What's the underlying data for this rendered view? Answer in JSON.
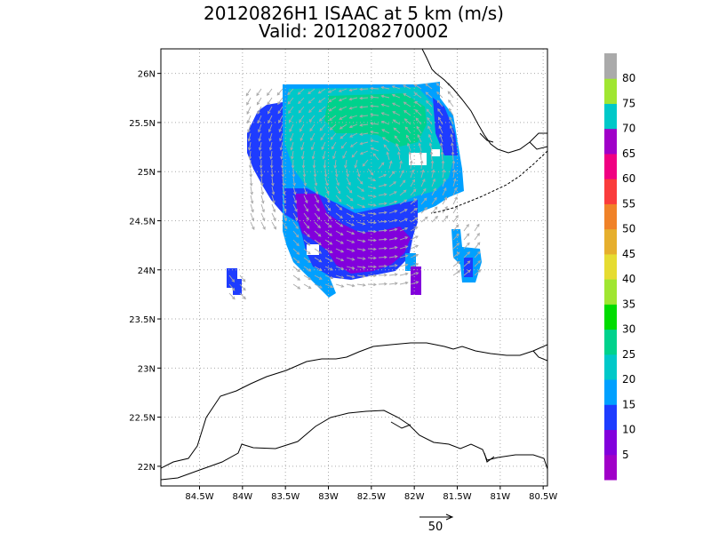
{
  "title": {
    "line1": "20120826H1 ISAAC at 5 km (m/s)",
    "line2": "Valid: 201208270002"
  },
  "map": {
    "lon_range": [
      -84.95,
      -80.45
    ],
    "lat_range": [
      21.8,
      26.25
    ],
    "lon_ticks": [
      {
        "value": -84.5,
        "label": "84.5W"
      },
      {
        "value": -84.0,
        "label": "84W"
      },
      {
        "value": -83.5,
        "label": "83.5W"
      },
      {
        "value": -83.0,
        "label": "83W"
      },
      {
        "value": -82.5,
        "label": "82.5W"
      },
      {
        "value": -82.0,
        "label": "82W"
      },
      {
        "value": -81.5,
        "label": "81.5W"
      },
      {
        "value": -81.0,
        "label": "81W"
      },
      {
        "value": -80.5,
        "label": "80.5W"
      }
    ],
    "lat_ticks": [
      {
        "value": 22.0,
        "label": "22N"
      },
      {
        "value": 22.5,
        "label": "22.5N"
      },
      {
        "value": 23.0,
        "label": "23N"
      },
      {
        "value": 23.5,
        "label": "23.5N"
      },
      {
        "value": 24.0,
        "label": "24N"
      },
      {
        "value": 24.5,
        "label": "24.5N"
      },
      {
        "value": 25.0,
        "label": "25N"
      },
      {
        "value": 25.5,
        "label": "25.5N"
      },
      {
        "value": 26.0,
        "label": "26N"
      }
    ],
    "grid": true
  },
  "colorbar": {
    "bins": [
      {
        "min": 0,
        "max": 5,
        "color": "#a000c8"
      },
      {
        "min": 5,
        "max": 10,
        "color": "#8200dc"
      },
      {
        "min": 10,
        "max": 15,
        "color": "#1e3cff"
      },
      {
        "min": 15,
        "max": 20,
        "color": "#00a0ff"
      },
      {
        "min": 20,
        "max": 25,
        "color": "#00c8c8"
      },
      {
        "min": 25,
        "max": 30,
        "color": "#00d28c"
      },
      {
        "min": 30,
        "max": 35,
        "color": "#00dc00"
      },
      {
        "min": 35,
        "max": 40,
        "color": "#a0e632"
      },
      {
        "min": 40,
        "max": 45,
        "color": "#e6dc32"
      },
      {
        "min": 45,
        "max": 50,
        "color": "#e6af2d"
      },
      {
        "min": 50,
        "max": 55,
        "color": "#f08228"
      },
      {
        "min": 55,
        "max": 60,
        "color": "#fa3c3c"
      },
      {
        "min": 60,
        "max": 65,
        "color": "#f00082"
      },
      {
        "min": 65,
        "max": 70,
        "color": "#a000c8"
      },
      {
        "min": 70,
        "max": 75,
        "color": "#00c8c8"
      },
      {
        "min": 75,
        "max": 80,
        "color": "#a0e632"
      },
      {
        "min": 80,
        "max": 85,
        "color": "#aaaaaa"
      }
    ],
    "labels": [
      "5",
      "10",
      "15",
      "20",
      "25",
      "30",
      "35",
      "40",
      "45",
      "50",
      "55",
      "60",
      "65",
      "70",
      "75",
      "80"
    ]
  },
  "vector_legend": {
    "label": "50"
  },
  "colors": {
    "coast": "#000000",
    "vector": "#aaaaaa",
    "grid": "#aaaaaa"
  }
}
